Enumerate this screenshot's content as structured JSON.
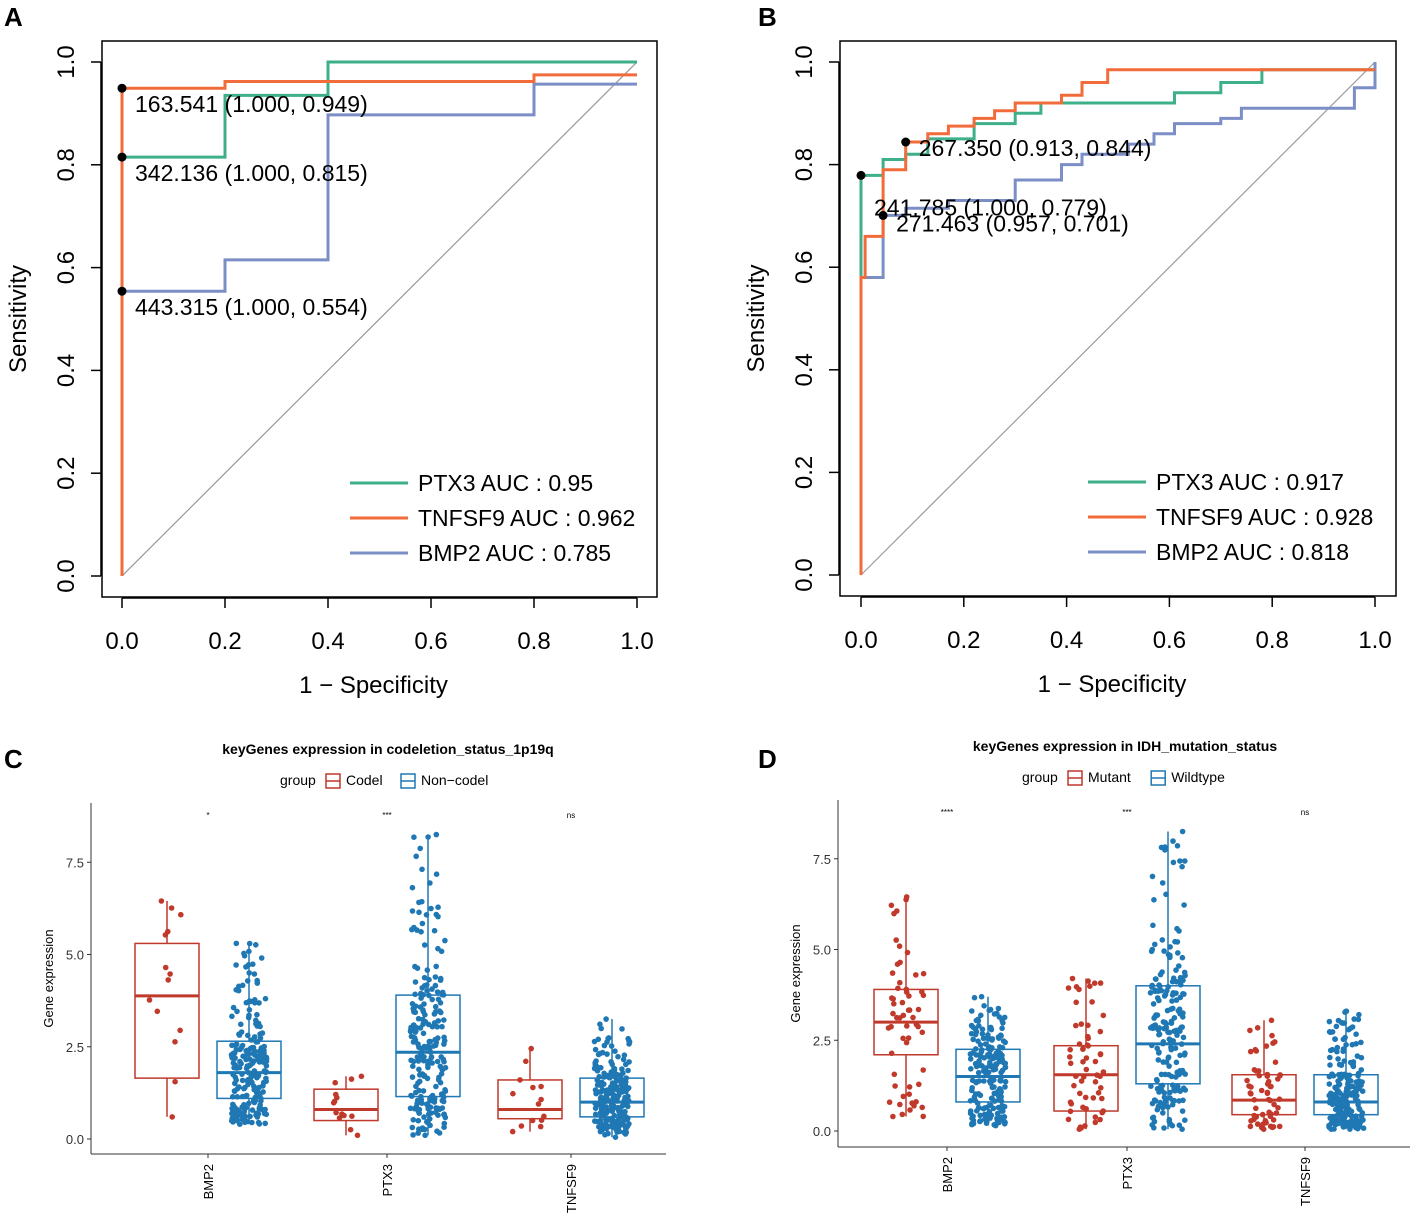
{
  "figure": {
    "panel_labels": [
      "A",
      "B",
      "C",
      "D"
    ]
  },
  "chart_data": [
    {
      "panel": "A",
      "type": "line",
      "subtype": "roc",
      "xlabel": "1 − Specificity",
      "ylabel": "Sensitivity",
      "xlim": [
        0,
        1
      ],
      "ylim": [
        0,
        1
      ],
      "xticks": [
        "0.0",
        "0.2",
        "0.4",
        "0.6",
        "0.8",
        "1.0"
      ],
      "yticks": [
        "0.0",
        "0.2",
        "0.4",
        "0.6",
        "0.8",
        "1.0"
      ],
      "legend_position": "bottom-right",
      "legend": [
        "PTX3 AUC : 0.95",
        "TNFSF9 AUC : 0.962",
        "BMP2 AUC : 0.785"
      ],
      "series": [
        {
          "name": "PTX3",
          "color": "#3daf8a",
          "x": [
            0,
            0,
            0.2,
            0.2,
            0.4,
            0.4,
            1
          ],
          "y": [
            0,
            0.815,
            0.815,
            0.935,
            0.935,
            1,
            1
          ]
        },
        {
          "name": "TNFSF9",
          "color": "#f26b3a",
          "x": [
            0,
            0,
            0.2,
            0.2,
            0.8,
            0.8,
            1
          ],
          "y": [
            0,
            0.949,
            0.949,
            0.962,
            0.962,
            0.975,
            0.975
          ]
        },
        {
          "name": "BMP2",
          "color": "#7b8ec5",
          "x": [
            0,
            0,
            0.2,
            0.2,
            0.4,
            0.4,
            0.8,
            0.8,
            1
          ],
          "y": [
            0,
            0.554,
            0.554,
            0.615,
            0.615,
            0.897,
            0.897,
            0.957,
            0.957
          ]
        }
      ],
      "points": [
        {
          "x": 0,
          "y": 0.949,
          "label": "163.541 (1.000, 0.949)"
        },
        {
          "x": 0,
          "y": 0.815,
          "label": "342.136 (1.000, 0.815)"
        },
        {
          "x": 0,
          "y": 0.554,
          "label": "443.315 (1.000, 0.554)"
        }
      ]
    },
    {
      "panel": "B",
      "type": "line",
      "subtype": "roc",
      "xlabel": "1 − Specificity",
      "ylabel": "Sensitivity",
      "xlim": [
        0,
        1
      ],
      "ylim": [
        0,
        1
      ],
      "xticks": [
        "0.0",
        "0.2",
        "0.4",
        "0.6",
        "0.8",
        "1.0"
      ],
      "yticks": [
        "0.0",
        "0.2",
        "0.4",
        "0.6",
        "0.8",
        "1.0"
      ],
      "legend_position": "bottom-right",
      "legend": [
        "PTX3 AUC : 0.917",
        "TNFSF9 AUC : 0.928",
        "BMP2 AUC : 0.818"
      ],
      "series": [
        {
          "name": "PTX3",
          "color": "#3daf8a",
          "x": [
            0,
            0,
            0.043,
            0.043,
            0.087,
            0.087,
            0.13,
            0.13,
            0.22,
            0.22,
            0.3,
            0.3,
            0.35,
            0.35,
            0.61,
            0.61,
            0.7,
            0.7,
            0.78,
            0.78,
            1
          ],
          "y": [
            0,
            0.779,
            0.779,
            0.81,
            0.81,
            0.82,
            0.82,
            0.85,
            0.85,
            0.88,
            0.88,
            0.9,
            0.9,
            0.92,
            0.92,
            0.94,
            0.94,
            0.96,
            0.96,
            0.985,
            0.985
          ]
        },
        {
          "name": "TNFSF9",
          "color": "#f26b3a",
          "x": [
            0,
            0,
            0.008,
            0.008,
            0.043,
            0.043,
            0.087,
            0.087,
            0.13,
            0.13,
            0.17,
            0.17,
            0.22,
            0.22,
            0.26,
            0.26,
            0.3,
            0.3,
            0.39,
            0.39,
            0.43,
            0.43,
            0.48,
            0.48,
            0.52,
            0.52,
            1
          ],
          "y": [
            0,
            0.58,
            0.58,
            0.66,
            0.66,
            0.79,
            0.79,
            0.844,
            0.844,
            0.86,
            0.86,
            0.875,
            0.875,
            0.89,
            0.89,
            0.905,
            0.905,
            0.92,
            0.92,
            0.935,
            0.935,
            0.96,
            0.96,
            0.985,
            0.985,
            0.985,
            0.985
          ]
        },
        {
          "name": "BMP2",
          "color": "#7b8ec5",
          "x": [
            0,
            0,
            0.043,
            0.043,
            0.087,
            0.087,
            0.17,
            0.17,
            0.3,
            0.3,
            0.39,
            0.39,
            0.43,
            0.43,
            0.52,
            0.52,
            0.57,
            0.57,
            0.61,
            0.61,
            0.7,
            0.7,
            0.74,
            0.74,
            0.96,
            0.96,
            1,
            1
          ],
          "y": [
            0,
            0.58,
            0.58,
            0.701,
            0.701,
            0.715,
            0.715,
            0.73,
            0.73,
            0.77,
            0.77,
            0.8,
            0.8,
            0.82,
            0.82,
            0.84,
            0.84,
            0.86,
            0.86,
            0.88,
            0.88,
            0.89,
            0.89,
            0.91,
            0.91,
            0.95,
            0.95,
            1.0
          ]
        }
      ],
      "points": [
        {
          "x": 0.087,
          "y": 0.844,
          "label": "267.350 (0.913, 0.844)"
        },
        {
          "x": 0.0,
          "y": 0.779,
          "label": "241.785 (1.000, 0.779)"
        },
        {
          "x": 0.043,
          "y": 0.701,
          "label": "271.463 (0.957, 0.701)"
        }
      ]
    },
    {
      "panel": "C",
      "type": "box",
      "title": "keyGenes expression in codeletion_status_1p19q",
      "legend_title": "group",
      "groups": [
        {
          "name": "Codel",
          "color": "#c0392b"
        },
        {
          "name": "Non−codel",
          "color": "#1f78b4"
        }
      ],
      "categories": [
        "BMP2",
        "PTX3",
        "TNFSF9"
      ],
      "significance": [
        "*",
        "***",
        "ns"
      ],
      "ylabel": "Gene expression",
      "ylim": [
        -0.4,
        8.9
      ],
      "yticks": [
        "0.0",
        "2.5",
        "5.0",
        "7.5"
      ],
      "boxes": [
        {
          "category": "BMP2",
          "group": "Codel",
          "min": 0.6,
          "q1": 1.65,
          "median": 3.88,
          "q3": 5.3,
          "max": 6.45,
          "n": 14
        },
        {
          "category": "BMP2",
          "group": "Non−codel",
          "min": 0.4,
          "q1": 1.1,
          "median": 1.8,
          "q3": 2.65,
          "max": 5.3,
          "n": 220
        },
        {
          "category": "PTX3",
          "group": "Codel",
          "min": 0.1,
          "q1": 0.5,
          "median": 0.8,
          "q3": 1.35,
          "max": 1.7,
          "n": 14
        },
        {
          "category": "PTX3",
          "group": "Non−codel",
          "min": 0.1,
          "q1": 1.15,
          "median": 2.35,
          "q3": 3.9,
          "max": 8.25,
          "n": 220
        },
        {
          "category": "TNFSF9",
          "group": "Codel",
          "min": 0.2,
          "q1": 0.55,
          "median": 0.8,
          "q3": 1.6,
          "max": 2.45,
          "n": 14
        },
        {
          "category": "TNFSF9",
          "group": "Non−codel",
          "min": 0.05,
          "q1": 0.6,
          "median": 1.0,
          "q3": 1.65,
          "max": 3.25,
          "n": 220
        }
      ]
    },
    {
      "panel": "D",
      "type": "box",
      "title": "keyGenes expression in IDH_mutation_status",
      "legend_title": "group",
      "groups": [
        {
          "name": "Mutant",
          "color": "#c0392b"
        },
        {
          "name": "Wildtype",
          "color": "#1f78b4"
        }
      ],
      "categories": [
        "BMP2",
        "PTX3",
        "TNFSF9"
      ],
      "significance": [
        "****",
        "***",
        "ns"
      ],
      "ylabel": "Gene expression",
      "ylim": [
        -0.4,
        8.9
      ],
      "yticks": [
        "0.0",
        "2.5",
        "5.0",
        "7.5"
      ],
      "boxes": [
        {
          "category": "BMP2",
          "group": "Mutant",
          "min": 0.4,
          "q1": 2.1,
          "median": 3.0,
          "q3": 3.9,
          "max": 6.45,
          "n": 60
        },
        {
          "category": "BMP2",
          "group": "Wildtype",
          "min": 0.15,
          "q1": 0.8,
          "median": 1.5,
          "q3": 2.25,
          "max": 3.7,
          "n": 200
        },
        {
          "category": "PTX3",
          "group": "Mutant",
          "min": 0.05,
          "q1": 0.55,
          "median": 1.55,
          "q3": 2.35,
          "max": 4.2,
          "n": 60
        },
        {
          "category": "PTX3",
          "group": "Wildtype",
          "min": 0.05,
          "q1": 1.3,
          "median": 2.4,
          "q3": 4.0,
          "max": 8.25,
          "n": 200
        },
        {
          "category": "TNFSF9",
          "group": "Mutant",
          "min": 0.05,
          "q1": 0.45,
          "median": 0.85,
          "q3": 1.55,
          "max": 3.05,
          "n": 60
        },
        {
          "category": "TNFSF9",
          "group": "Wildtype",
          "min": 0.05,
          "q1": 0.45,
          "median": 0.8,
          "q3": 1.55,
          "max": 3.3,
          "n": 200
        }
      ]
    }
  ]
}
